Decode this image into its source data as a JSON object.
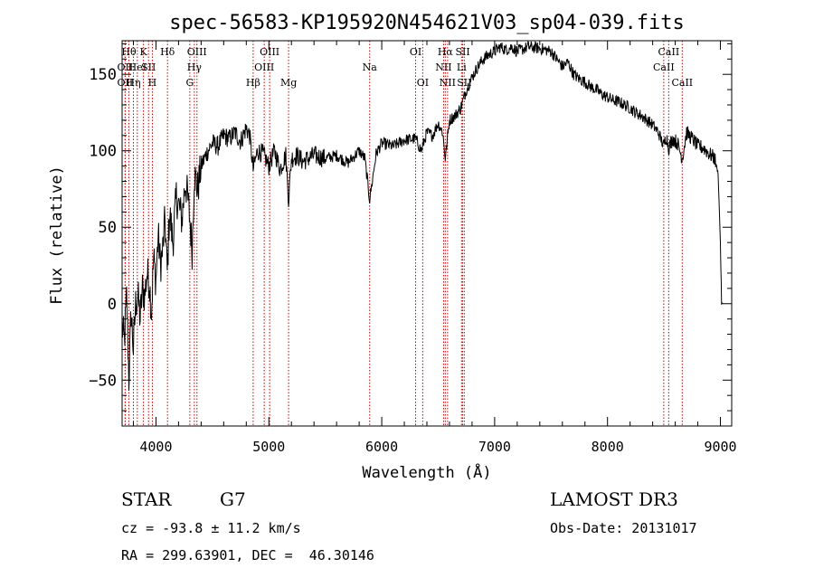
{
  "chart_data": {
    "type": "line",
    "title": "spec-56583-KP195920N454621V03_sp04-039.fits",
    "xlabel": "Wavelength (Å)",
    "ylabel": "Flux (relative)",
    "xlim": [
      3700,
      9100
    ],
    "ylim": [
      -80,
      172
    ],
    "x_ticks": [
      4000,
      5000,
      6000,
      7000,
      8000,
      9000
    ],
    "y_ticks": [
      -50,
      0,
      50,
      100,
      150
    ],
    "series": [
      {
        "name": "flux",
        "x": [
          3700,
          3720,
          3740,
          3760,
          3780,
          3800,
          3820,
          3840,
          3860,
          3880,
          3900,
          3920,
          3940,
          3960,
          3980,
          4000,
          4020,
          4040,
          4060,
          4080,
          4100,
          4120,
          4150,
          4180,
          4200,
          4230,
          4260,
          4280,
          4300,
          4320,
          4340,
          4370,
          4400,
          4430,
          4460,
          4500,
          4550,
          4600,
          4650,
          4700,
          4750,
          4800,
          4830,
          4861,
          4900,
          4950,
          5000,
          5050,
          5100,
          5150,
          5175,
          5200,
          5250,
          5300,
          5400,
          5500,
          5600,
          5700,
          5800,
          5850,
          5893,
          5950,
          6000,
          6100,
          6200,
          6300,
          6350,
          6400,
          6450,
          6500,
          6540,
          6563,
          6600,
          6650,
          6700,
          6750,
          6800,
          6850,
          6900,
          6950,
          7000,
          7050,
          7100,
          7150,
          7200,
          7300,
          7400,
          7500,
          7550,
          7600,
          7650,
          7700,
          7750,
          7800,
          7850,
          7900,
          7950,
          8000,
          8050,
          8100,
          8150,
          8200,
          8250,
          8300,
          8350,
          8400,
          8450,
          8498,
          8520,
          8542,
          8580,
          8620,
          8662,
          8700,
          8750,
          8800,
          8850,
          8900,
          8950,
          8980,
          9000,
          9010,
          9020
        ],
        "y": [
          -15,
          -25,
          5,
          -50,
          -5,
          -30,
          0,
          5,
          -10,
          10,
          5,
          20,
          15,
          -5,
          30,
          15,
          45,
          25,
          35,
          55,
          20,
          60,
          40,
          70,
          65,
          55,
          80,
          70,
          55,
          35,
          85,
          75,
          90,
          95,
          100,
          105,
          103,
          110,
          108,
          112,
          106,
          115,
          110,
          88,
          100,
          98,
          90,
          100,
          88,
          97,
          68,
          95,
          97,
          93,
          97,
          95,
          97,
          92,
          100,
          95,
          68,
          98,
          105,
          103,
          107,
          108,
          100,
          112,
          110,
          118,
          112,
          95,
          120,
          123,
          128,
          140,
          148,
          155,
          160,
          163,
          165,
          168,
          166,
          168,
          165,
          168,
          167,
          165,
          160,
          155,
          158,
          150,
          147,
          145,
          142,
          140,
          137,
          135,
          133,
          132,
          130,
          128,
          125,
          123,
          120,
          117,
          112,
          103,
          110,
          102,
          108,
          105,
          95,
          112,
          108,
          103,
          102,
          98,
          95,
          85,
          40,
          0,
          0
        ]
      }
    ],
    "line_markers": [
      {
        "wl": 3727,
        "label": "OII",
        "row": 2
      },
      {
        "wl": 3727,
        "label": "OII",
        "row": 3
      },
      {
        "wl": 3760,
        "label": "Hθ",
        "row": 1
      },
      {
        "wl": 3800,
        "label": "Hη",
        "row": 3
      },
      {
        "wl": 3835,
        "label": "HeI",
        "row": 2
      },
      {
        "wl": 3889,
        "label": "K",
        "row": 1
      },
      {
        "wl": 3934,
        "label": "SII",
        "row": 2
      },
      {
        "wl": 3968,
        "label": "H",
        "row": 3
      },
      {
        "wl": 4102,
        "label": "Hδ",
        "row": 1
      },
      {
        "wl": 4300,
        "label": "G",
        "row": 3
      },
      {
        "wl": 4340,
        "label": "Hγ",
        "row": 2
      },
      {
        "wl": 4363,
        "label": "OIII",
        "row": 1
      },
      {
        "wl": 4861,
        "label": "Hβ",
        "row": 3
      },
      {
        "wl": 4959,
        "label": "OIII",
        "row": 2
      },
      {
        "wl": 5007,
        "label": "OIII",
        "row": 1
      },
      {
        "wl": 5175,
        "label": "Mg",
        "row": 3
      },
      {
        "wl": 5893,
        "label": "Na",
        "row": 2
      },
      {
        "wl": 6300,
        "label": "OI",
        "row": 1
      },
      {
        "wl": 6363,
        "label": "OI",
        "row": 3
      },
      {
        "wl": 6548,
        "label": "NII",
        "row": 2
      },
      {
        "wl": 6563,
        "label": "Hα",
        "row": 1
      },
      {
        "wl": 6583,
        "label": "NII",
        "row": 3
      },
      {
        "wl": 6707,
        "label": "Li",
        "row": 2
      },
      {
        "wl": 6717,
        "label": "SII",
        "row": 1
      },
      {
        "wl": 6731,
        "label": "SII",
        "row": 3
      },
      {
        "wl": 8498,
        "label": "CaII",
        "row": 2
      },
      {
        "wl": 8542,
        "label": "CaII",
        "row": 1
      },
      {
        "wl": 8662,
        "label": "CaII",
        "row": 3
      }
    ]
  },
  "info": {
    "object_class": "STAR",
    "subclass": "G7",
    "survey": "LAMOST DR3",
    "redshift_line": "cz = -93.8 ± 11.2 km/s",
    "obs_date": "Obs-Date: 20131017",
    "coords": "RA = 299.63901, DEC =  46.30146"
  }
}
